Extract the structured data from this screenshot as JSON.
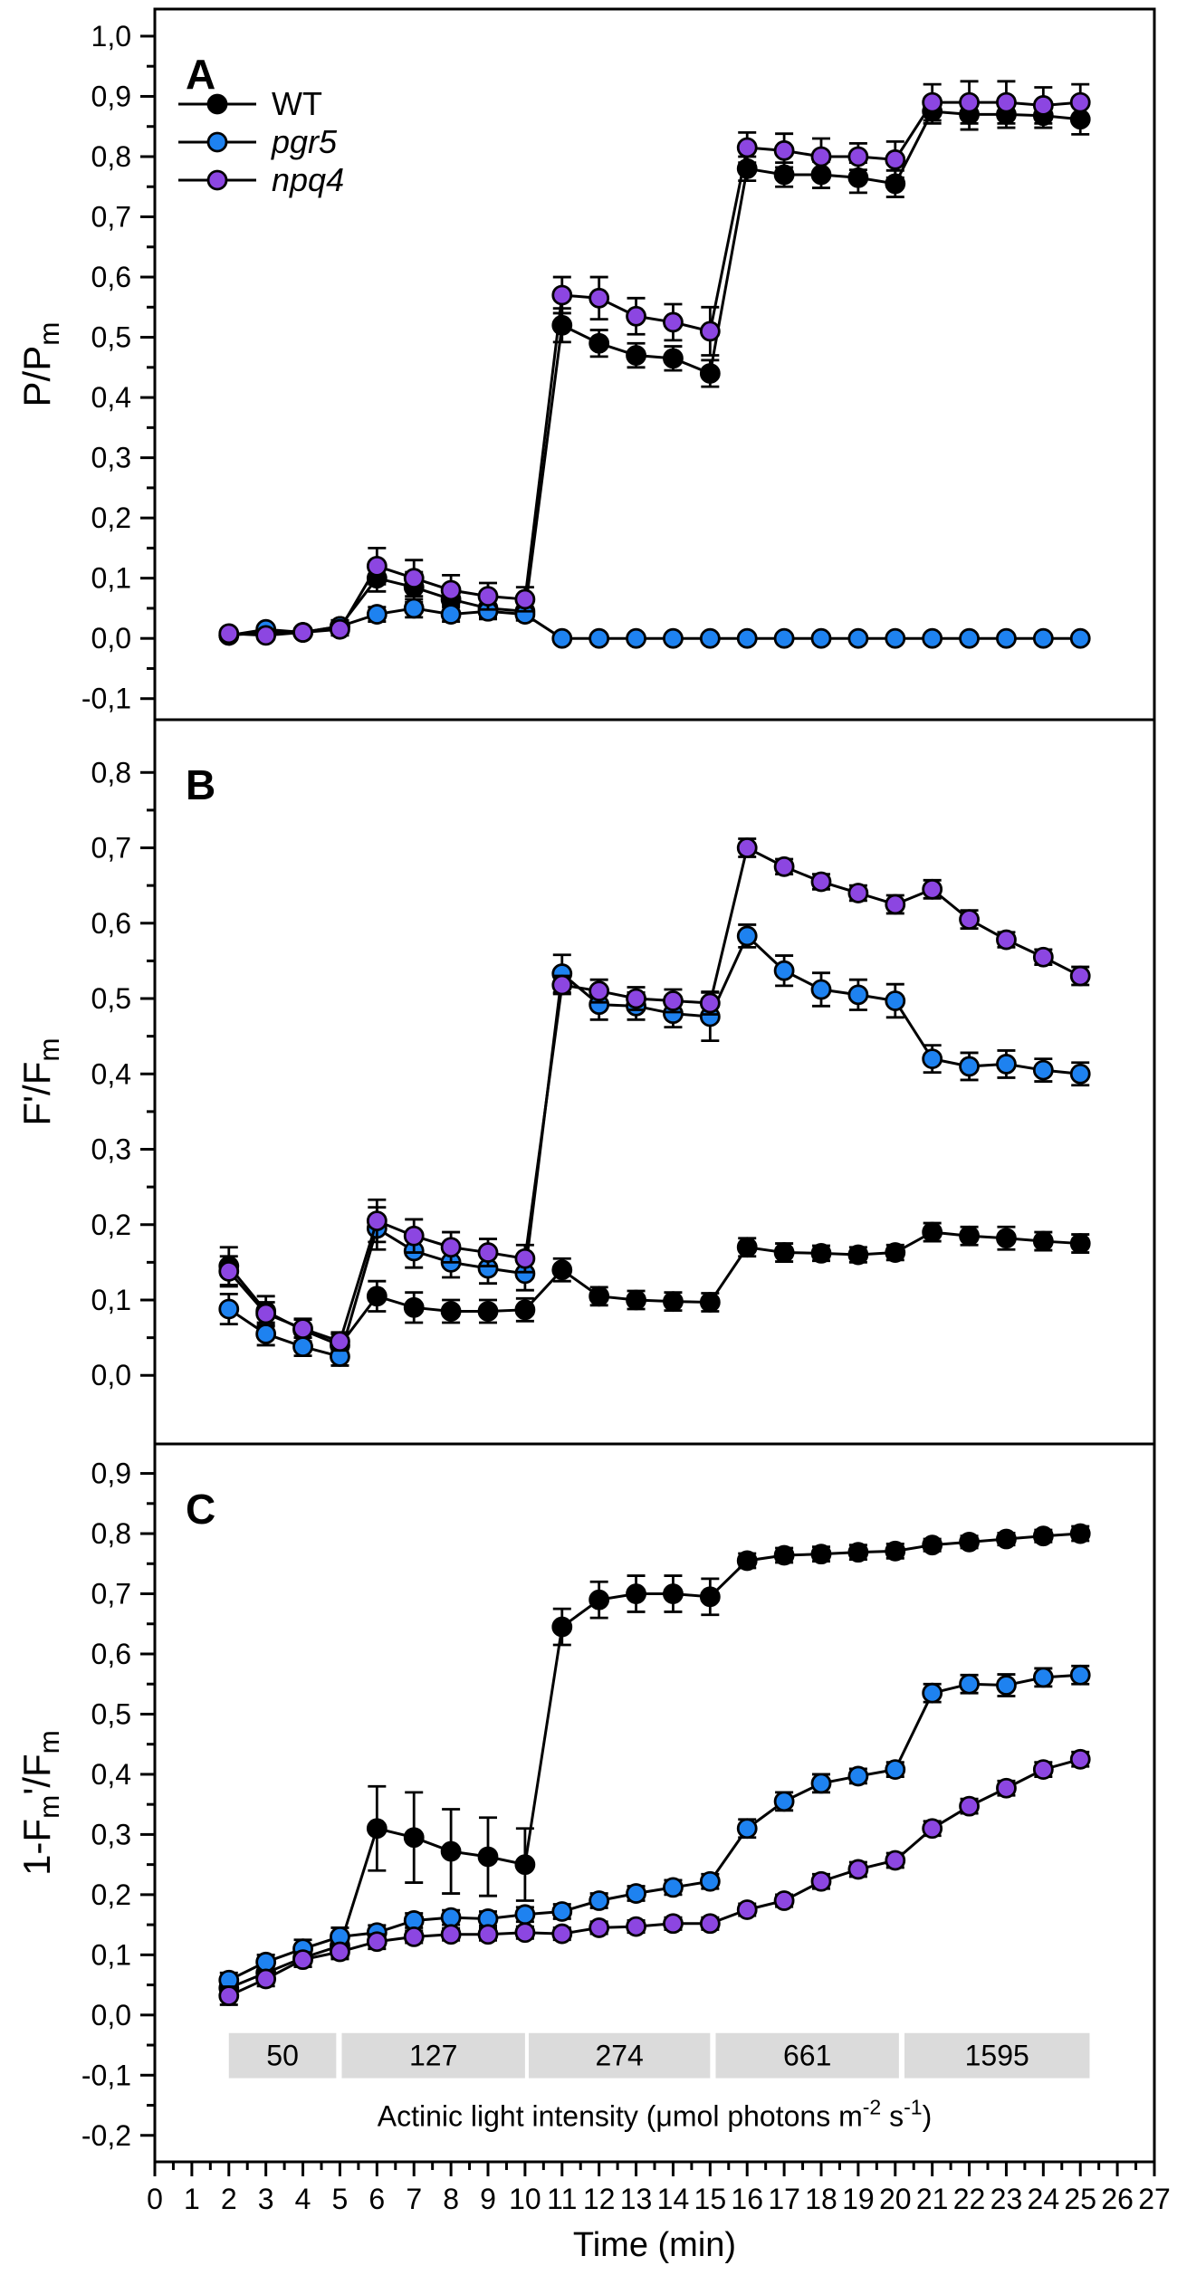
{
  "figure": {
    "background": "#FFFFFF",
    "frame_color": "#000000"
  },
  "legend": {
    "entries": [
      {
        "label": "WT",
        "italic": false,
        "color": "#000000"
      },
      {
        "label": "pgr5",
        "italic": true,
        "color": "#1E82F0"
      },
      {
        "label": "npq4",
        "italic": true,
        "color": "#8C46E1"
      }
    ]
  },
  "x_axis": {
    "label": "Time (min)",
    "tick_min": 0,
    "tick_max": 27
  },
  "light_bands": {
    "fill": "#DBDBDB",
    "labels": [
      "50",
      "127",
      "274",
      "661",
      "1595"
    ],
    "ranges": [
      [
        2.0,
        4.9
      ],
      [
        5.05,
        10.0
      ],
      [
        10.1,
        15.0
      ],
      [
        15.15,
        20.1
      ],
      [
        20.25,
        25.25
      ]
    ],
    "title_parts": [
      {
        "t": "Actinic light intensity ("
      },
      {
        "t": "μ"
      },
      {
        "t": "mol photons m"
      },
      {
        "t": "-2",
        "sup": true
      },
      {
        "t": " s"
      },
      {
        "t": "-1",
        "sup": true
      },
      {
        "t": ")"
      }
    ]
  },
  "chart_data": [
    {
      "id": "A",
      "type": "line",
      "panel_label": "A",
      "ylabel": "P/Pm",
      "ylabel_parts": [
        {
          "t": "P/P"
        },
        {
          "t": "m",
          "sub": true
        }
      ],
      "ylim": [
        -0.135,
        1.045
      ],
      "yticks": [
        1.0,
        0.9,
        0.8,
        0.7,
        0.6,
        0.5,
        0.4,
        0.3,
        0.2,
        0.1,
        0.0,
        -0.1
      ],
      "x": [
        2,
        3,
        4,
        5,
        6,
        7,
        8,
        9,
        10,
        11,
        12,
        13,
        14,
        15,
        16,
        17,
        18,
        19,
        20,
        21,
        22,
        23,
        24,
        25
      ],
      "series": [
        {
          "name": "WT",
          "color": "#000000",
          "values": [
            0.005,
            0.01,
            0.01,
            0.02,
            0.1,
            0.085,
            0.065,
            0.05,
            0.045,
            0.52,
            0.49,
            0.47,
            0.465,
            0.44,
            0.78,
            0.77,
            0.77,
            0.765,
            0.755,
            0.875,
            0.87,
            0.87,
            0.868,
            0.862
          ],
          "errors": [
            0.006,
            0.006,
            0.006,
            0.01,
            0.022,
            0.025,
            0.02,
            0.018,
            0.015,
            0.028,
            0.022,
            0.02,
            0.02,
            0.022,
            0.02,
            0.02,
            0.022,
            0.025,
            0.022,
            0.02,
            0.025,
            0.022,
            0.02,
            0.025
          ]
        },
        {
          "name": "pgr5",
          "color": "#1E82F0",
          "values": [
            0.005,
            0.015,
            0.01,
            0.02,
            0.04,
            0.05,
            0.04,
            0.045,
            0.04,
            0.0,
            0.0,
            0.0,
            0.0,
            0.0,
            0.0,
            0.0,
            0.0,
            0.0,
            0.0,
            0.0,
            0.0,
            0.0,
            0.0,
            0.0
          ],
          "errors": [
            0.006,
            0.006,
            0.006,
            0.01,
            0.012,
            0.015,
            0.012,
            0.01,
            0.01,
            0.003,
            0.003,
            0.003,
            0.003,
            0.003,
            0.003,
            0.003,
            0.003,
            0.003,
            0.003,
            0.003,
            0.003,
            0.003,
            0.003,
            0.003
          ]
        },
        {
          "name": "npq4",
          "color": "#8C46E1",
          "values": [
            0.008,
            0.005,
            0.01,
            0.015,
            0.12,
            0.1,
            0.08,
            0.07,
            0.065,
            0.57,
            0.565,
            0.535,
            0.525,
            0.51,
            0.815,
            0.81,
            0.8,
            0.8,
            0.795,
            0.89,
            0.89,
            0.89,
            0.885,
            0.89
          ],
          "errors": [
            0.006,
            0.006,
            0.006,
            0.01,
            0.03,
            0.03,
            0.025,
            0.022,
            0.02,
            0.03,
            0.035,
            0.03,
            0.03,
            0.04,
            0.025,
            0.028,
            0.03,
            0.022,
            0.03,
            0.03,
            0.035,
            0.035,
            0.03,
            0.03
          ]
        }
      ]
    },
    {
      "id": "B",
      "type": "line",
      "panel_label": "B",
      "ylabel": "F'/Fm",
      "ylabel_parts": [
        {
          "t": "F'/F"
        },
        {
          "t": "m",
          "sub": true
        }
      ],
      "ylim": [
        -0.091,
        0.87
      ],
      "yticks": [
        0.8,
        0.7,
        0.6,
        0.5,
        0.4,
        0.3,
        0.2,
        0.1,
        0.0
      ],
      "x": [
        2,
        3,
        4,
        5,
        6,
        7,
        8,
        9,
        10,
        11,
        12,
        13,
        14,
        15,
        16,
        17,
        18,
        19,
        20,
        21,
        22,
        23,
        24,
        25
      ],
      "series": [
        {
          "name": "WT",
          "color": "#000000",
          "values": [
            0.145,
            0.085,
            0.06,
            0.04,
            0.105,
            0.09,
            0.085,
            0.085,
            0.087,
            0.14,
            0.105,
            0.1,
            0.098,
            0.097,
            0.17,
            0.163,
            0.162,
            0.16,
            0.163,
            0.19,
            0.185,
            0.182,
            0.178,
            0.175
          ],
          "errors": [
            0.025,
            0.02,
            0.015,
            0.015,
            0.02,
            0.02,
            0.015,
            0.015,
            0.015,
            0.015,
            0.012,
            0.012,
            0.012,
            0.012,
            0.012,
            0.012,
            0.01,
            0.01,
            0.01,
            0.012,
            0.012,
            0.015,
            0.012,
            0.012
          ]
        },
        {
          "name": "pgr5",
          "color": "#1E82F0",
          "values": [
            0.088,
            0.055,
            0.038,
            0.025,
            0.195,
            0.165,
            0.15,
            0.142,
            0.135,
            0.533,
            0.492,
            0.49,
            0.48,
            0.476,
            0.583,
            0.537,
            0.512,
            0.505,
            0.497,
            0.42,
            0.41,
            0.413,
            0.405,
            0.4
          ],
          "errors": [
            0.02,
            0.015,
            0.012,
            0.012,
            0.028,
            0.022,
            0.02,
            0.02,
            0.022,
            0.025,
            0.02,
            0.018,
            0.018,
            0.032,
            0.015,
            0.02,
            0.022,
            0.02,
            0.022,
            0.018,
            0.018,
            0.018,
            0.015,
            0.015
          ]
        },
        {
          "name": "npq4",
          "color": "#8C46E1",
          "values": [
            0.138,
            0.082,
            0.062,
            0.045,
            0.205,
            0.185,
            0.17,
            0.163,
            0.155,
            0.518,
            0.51,
            0.5,
            0.497,
            0.494,
            0.7,
            0.675,
            0.655,
            0.64,
            0.625,
            0.645,
            0.605,
            0.578,
            0.555,
            0.53
          ],
          "errors": [
            0.02,
            0.015,
            0.012,
            0.012,
            0.028,
            0.022,
            0.02,
            0.018,
            0.018,
            0.012,
            0.015,
            0.015,
            0.015,
            0.015,
            0.012,
            0.01,
            0.01,
            0.01,
            0.012,
            0.012,
            0.012,
            0.01,
            0.01,
            0.012
          ]
        }
      ]
    },
    {
      "id": "C",
      "type": "line",
      "panel_label": "C",
      "ylabel": "1-Fm'/Fm",
      "ylabel_parts": [
        {
          "t": "1-F"
        },
        {
          "t": "m",
          "sub": true
        },
        {
          "t": "'/F"
        },
        {
          "t": "m",
          "sub": true
        }
      ],
      "ylim": [
        -0.244,
        0.949
      ],
      "yticks": [
        0.9,
        0.8,
        0.7,
        0.6,
        0.5,
        0.4,
        0.3,
        0.2,
        0.1,
        0.0,
        -0.1,
        -0.2
      ],
      "x": [
        2,
        3,
        4,
        5,
        6,
        7,
        8,
        9,
        10,
        11,
        12,
        13,
        14,
        15,
        16,
        17,
        18,
        19,
        20,
        21,
        22,
        23,
        24,
        25
      ],
      "has_bands": true,
      "series": [
        {
          "name": "WT",
          "color": "#000000",
          "values": [
            0.045,
            0.07,
            0.095,
            0.115,
            0.31,
            0.295,
            0.272,
            0.263,
            0.25,
            0.645,
            0.69,
            0.7,
            0.7,
            0.695,
            0.755,
            0.764,
            0.766,
            0.769,
            0.771,
            0.781,
            0.786,
            0.791,
            0.796,
            0.8
          ],
          "errors": [
            0.01,
            0.012,
            0.015,
            0.02,
            0.07,
            0.075,
            0.07,
            0.065,
            0.06,
            0.03,
            0.03,
            0.03,
            0.03,
            0.03,
            0.012,
            0.012,
            0.012,
            0.012,
            0.012,
            0.01,
            0.01,
            0.01,
            0.01,
            0.012
          ]
        },
        {
          "name": "pgr5",
          "color": "#1E82F0",
          "values": [
            0.058,
            0.088,
            0.11,
            0.13,
            0.137,
            0.157,
            0.162,
            0.16,
            0.167,
            0.172,
            0.19,
            0.202,
            0.212,
            0.222,
            0.31,
            0.355,
            0.385,
            0.397,
            0.408,
            0.535,
            0.55,
            0.548,
            0.561,
            0.565
          ],
          "errors": [
            0.012,
            0.012,
            0.015,
            0.015,
            0.012,
            0.012,
            0.012,
            0.012,
            0.012,
            0.012,
            0.012,
            0.012,
            0.012,
            0.012,
            0.015,
            0.015,
            0.015,
            0.012,
            0.012,
            0.015,
            0.015,
            0.018,
            0.015,
            0.015
          ]
        },
        {
          "name": "npq4",
          "color": "#8C46E1",
          "values": [
            0.032,
            0.06,
            0.092,
            0.105,
            0.122,
            0.13,
            0.134,
            0.134,
            0.137,
            0.135,
            0.145,
            0.147,
            0.152,
            0.152,
            0.175,
            0.19,
            0.222,
            0.242,
            0.257,
            0.31,
            0.347,
            0.377,
            0.408,
            0.425
          ],
          "errors": [
            0.015,
            0.012,
            0.012,
            0.012,
            0.012,
            0.01,
            0.01,
            0.01,
            0.01,
            0.01,
            0.01,
            0.01,
            0.01,
            0.01,
            0.01,
            0.01,
            0.012,
            0.012,
            0.012,
            0.012,
            0.012,
            0.012,
            0.012,
            0.012
          ]
        }
      ]
    }
  ]
}
